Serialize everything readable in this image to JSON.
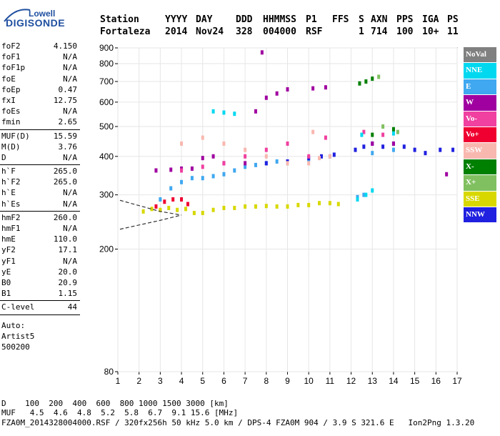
{
  "logo": {
    "brand_top": "Lowell",
    "brand_main": "DIGISONDE"
  },
  "header": {
    "row1": [
      "Station",
      "YYYY",
      "DAY",
      "DDD",
      "HHMMSS",
      "P1",
      "FFS",
      "S",
      "AXN",
      "PPS",
      "IGA",
      "PS"
    ],
    "row2": [
      "Fortaleza",
      "2014",
      "Nov24",
      "328",
      "004000",
      "RSF",
      "",
      "1",
      "714",
      "100",
      "10+",
      "11"
    ]
  },
  "params": {
    "group1": [
      [
        "foF2",
        "4.150"
      ],
      [
        "foF1",
        "N/A"
      ],
      [
        "foF1p",
        "N/A"
      ],
      [
        "foE",
        "N/A"
      ],
      [
        "foEp",
        "0.47"
      ],
      [
        "fxI",
        "12.75"
      ],
      [
        "foEs",
        "N/A"
      ],
      [
        "fmin",
        "2.65"
      ]
    ],
    "group2": [
      [
        "MUF(D)",
        "15.59"
      ],
      [
        "M(D)",
        "3.76"
      ],
      [
        "D",
        "N/A"
      ]
    ],
    "group3": [
      [
        "h`F",
        "265.0"
      ],
      [
        "h`F2",
        "265.0"
      ],
      [
        "h`E",
        "N/A"
      ],
      [
        "h`Es",
        "N/A"
      ]
    ],
    "group4": [
      [
        "hmF2",
        "260.0"
      ],
      [
        "hmF1",
        "N/A"
      ],
      [
        "hmE",
        "110.0"
      ],
      [
        "yF2",
        "17.1"
      ],
      [
        "yF1",
        "N/A"
      ],
      [
        "yE",
        "20.0"
      ],
      [
        "B0",
        "20.9"
      ],
      [
        "B1",
        "1.15"
      ]
    ],
    "clevel": [
      "C-level",
      "44"
    ],
    "auto": [
      "Auto:",
      "Artist5",
      "500200"
    ]
  },
  "legend": [
    {
      "label": "NoVal",
      "bg": "#808080",
      "fg": "#ffffff"
    },
    {
      "label": "NNE",
      "bg": "#00d8f0",
      "fg": "#ffffff"
    },
    {
      "label": "E",
      "bg": "#40a8f0",
      "fg": "#ffffff"
    },
    {
      "label": "W",
      "bg": "#a000a0",
      "fg": "#ffffff"
    },
    {
      "label": "Vo-",
      "bg": "#f040a0",
      "fg": "#ffffff"
    },
    {
      "label": "Vo+",
      "bg": "#f00030",
      "fg": "#ffffff"
    },
    {
      "label": "SSW",
      "bg": "#f8b8b0",
      "fg": "#ffffff"
    },
    {
      "label": "X-",
      "bg": "#008000",
      "fg": "#ffffff"
    },
    {
      "label": "X+",
      "bg": "#80c060",
      "fg": "#ffffff"
    },
    {
      "label": "SSE",
      "bg": "#d8d800",
      "fg": "#ffffff"
    },
    {
      "label": "NNW",
      "bg": "#2020e0",
      "fg": "#ffffff"
    }
  ],
  "footer": {
    "d_line": "D    100  200  400  600  800 1000 1500 3000 [km]",
    "muf_line": "MUF   4.5  4.6  4.8  5.2  5.8  6.7  9.1 15.6 [MHz]",
    "file_line": "FZA0M_2014328004000.RSF / 320fx256h 50 kHz 5.0 km / DPS-4 FZA0M 904 / 3.9 S 321.6 E   Ion2Png 1.3.20"
  },
  "chart_data": {
    "type": "scatter",
    "title": "",
    "xlabel": "",
    "ylabel": "",
    "xlim": [
      1,
      17
    ],
    "ylim": [
      80,
      900
    ],
    "xticks": [
      1,
      2,
      3,
      4,
      5,
      6,
      7,
      8,
      9,
      10,
      11,
      12,
      13,
      14,
      15,
      16,
      17
    ],
    "yticks": [
      80,
      200,
      300,
      400,
      500,
      600,
      700,
      800,
      900
    ],
    "y_scale": "log",
    "grid": true,
    "legend_position": "right",
    "series": [
      {
        "name": "SSE",
        "color": "#d8d800",
        "points": [
          [
            2.2,
            265
          ],
          [
            2.6,
            270
          ],
          [
            3.0,
            268
          ],
          [
            3.4,
            272
          ],
          [
            3.8,
            268
          ],
          [
            4.2,
            270
          ],
          [
            4.6,
            262
          ],
          [
            5.0,
            262
          ],
          [
            5.5,
            268
          ],
          [
            6.0,
            272
          ],
          [
            6.5,
            272
          ],
          [
            7.0,
            275
          ],
          [
            7.5,
            275
          ],
          [
            8.0,
            276
          ],
          [
            8.5,
            275
          ],
          [
            9.0,
            275
          ],
          [
            9.5,
            278
          ],
          [
            10.0,
            278
          ],
          [
            10.5,
            282
          ],
          [
            11.0,
            282
          ],
          [
            11.4,
            280
          ]
        ]
      },
      {
        "name": "E",
        "color": "#40a8f0",
        "points": [
          [
            3.0,
            290
          ],
          [
            3.5,
            315
          ],
          [
            4.0,
            330
          ],
          [
            4.5,
            340
          ],
          [
            5.0,
            340
          ],
          [
            5.5,
            345
          ],
          [
            6.0,
            350
          ],
          [
            6.5,
            360
          ],
          [
            7.0,
            370
          ],
          [
            7.5,
            375
          ],
          [
            8.0,
            380
          ],
          [
            8.5,
            385
          ],
          [
            9.0,
            380
          ],
          [
            10.0,
            390
          ],
          [
            11.0,
            400
          ],
          [
            12.3,
            295
          ],
          [
            12.6,
            300
          ],
          [
            13.0,
            410
          ],
          [
            14.0,
            420
          ]
        ]
      },
      {
        "name": "NNW",
        "color": "#2020e0",
        "points": [
          [
            8.0,
            380
          ],
          [
            9.0,
            385
          ],
          [
            10.0,
            395
          ],
          [
            10.6,
            400
          ],
          [
            11.2,
            405
          ],
          [
            12.2,
            420
          ],
          [
            12.6,
            430
          ],
          [
            13.0,
            440
          ],
          [
            13.5,
            430
          ],
          [
            14.0,
            440
          ],
          [
            14.5,
            430
          ],
          [
            15.0,
            420
          ],
          [
            15.5,
            410
          ],
          [
            16.2,
            420
          ],
          [
            16.8,
            420
          ]
        ]
      },
      {
        "name": "W",
        "color": "#a000a0",
        "points": [
          [
            2.8,
            360
          ],
          [
            3.5,
            362
          ],
          [
            4.0,
            365
          ],
          [
            4.5,
            365
          ],
          [
            5.0,
            395
          ],
          [
            5.5,
            400
          ],
          [
            6.0,
            380
          ],
          [
            7.0,
            380
          ],
          [
            7.5,
            560
          ],
          [
            8.0,
            620
          ],
          [
            8.5,
            640
          ],
          [
            9.0,
            660
          ],
          [
            10.2,
            665
          ],
          [
            10.8,
            670
          ],
          [
            7.8,
            870
          ],
          [
            13.0,
            440
          ],
          [
            14.0,
            440
          ],
          [
            16.5,
            350
          ]
        ]
      },
      {
        "name": "Vo-",
        "color": "#f040a0",
        "points": [
          [
            4.0,
            360
          ],
          [
            5.0,
            370
          ],
          [
            6.0,
            380
          ],
          [
            7.0,
            400
          ],
          [
            8.0,
            420
          ],
          [
            9.0,
            440
          ],
          [
            10.0,
            400
          ],
          [
            10.8,
            460
          ],
          [
            12.6,
            480
          ],
          [
            13.5,
            470
          ]
        ]
      },
      {
        "name": "Vo+",
        "color": "#f00030",
        "points": [
          [
            2.8,
            275
          ],
          [
            3.2,
            285
          ],
          [
            3.6,
            290
          ],
          [
            4.0,
            290
          ],
          [
            4.3,
            280
          ]
        ]
      },
      {
        "name": "SSW",
        "color": "#f8b8b0",
        "points": [
          [
            4.0,
            440
          ],
          [
            5.0,
            460
          ],
          [
            6.0,
            440
          ],
          [
            7.0,
            420
          ],
          [
            8.0,
            400
          ],
          [
            9.0,
            380
          ],
          [
            10.0,
            380
          ],
          [
            10.5,
            395
          ],
          [
            11.0,
            400
          ],
          [
            10.2,
            480
          ]
        ]
      },
      {
        "name": "NNE",
        "color": "#00d8f0",
        "points": [
          [
            5.5,
            560
          ],
          [
            6.0,
            555
          ],
          [
            6.5,
            550
          ],
          [
            12.3,
            290
          ],
          [
            12.7,
            300
          ],
          [
            13.0,
            310
          ],
          [
            12.5,
            470
          ],
          [
            14.0,
            475
          ]
        ]
      },
      {
        "name": "X-",
        "color": "#008000",
        "points": [
          [
            12.4,
            690
          ],
          [
            12.7,
            700
          ],
          [
            13.0,
            715
          ],
          [
            13.0,
            470
          ],
          [
            14.0,
            490
          ]
        ]
      },
      {
        "name": "X+",
        "color": "#80c060",
        "points": [
          [
            13.3,
            725
          ],
          [
            13.5,
            500
          ],
          [
            14.2,
            480
          ]
        ]
      },
      {
        "name": "NoVal",
        "color": "#808080",
        "points": []
      }
    ]
  }
}
